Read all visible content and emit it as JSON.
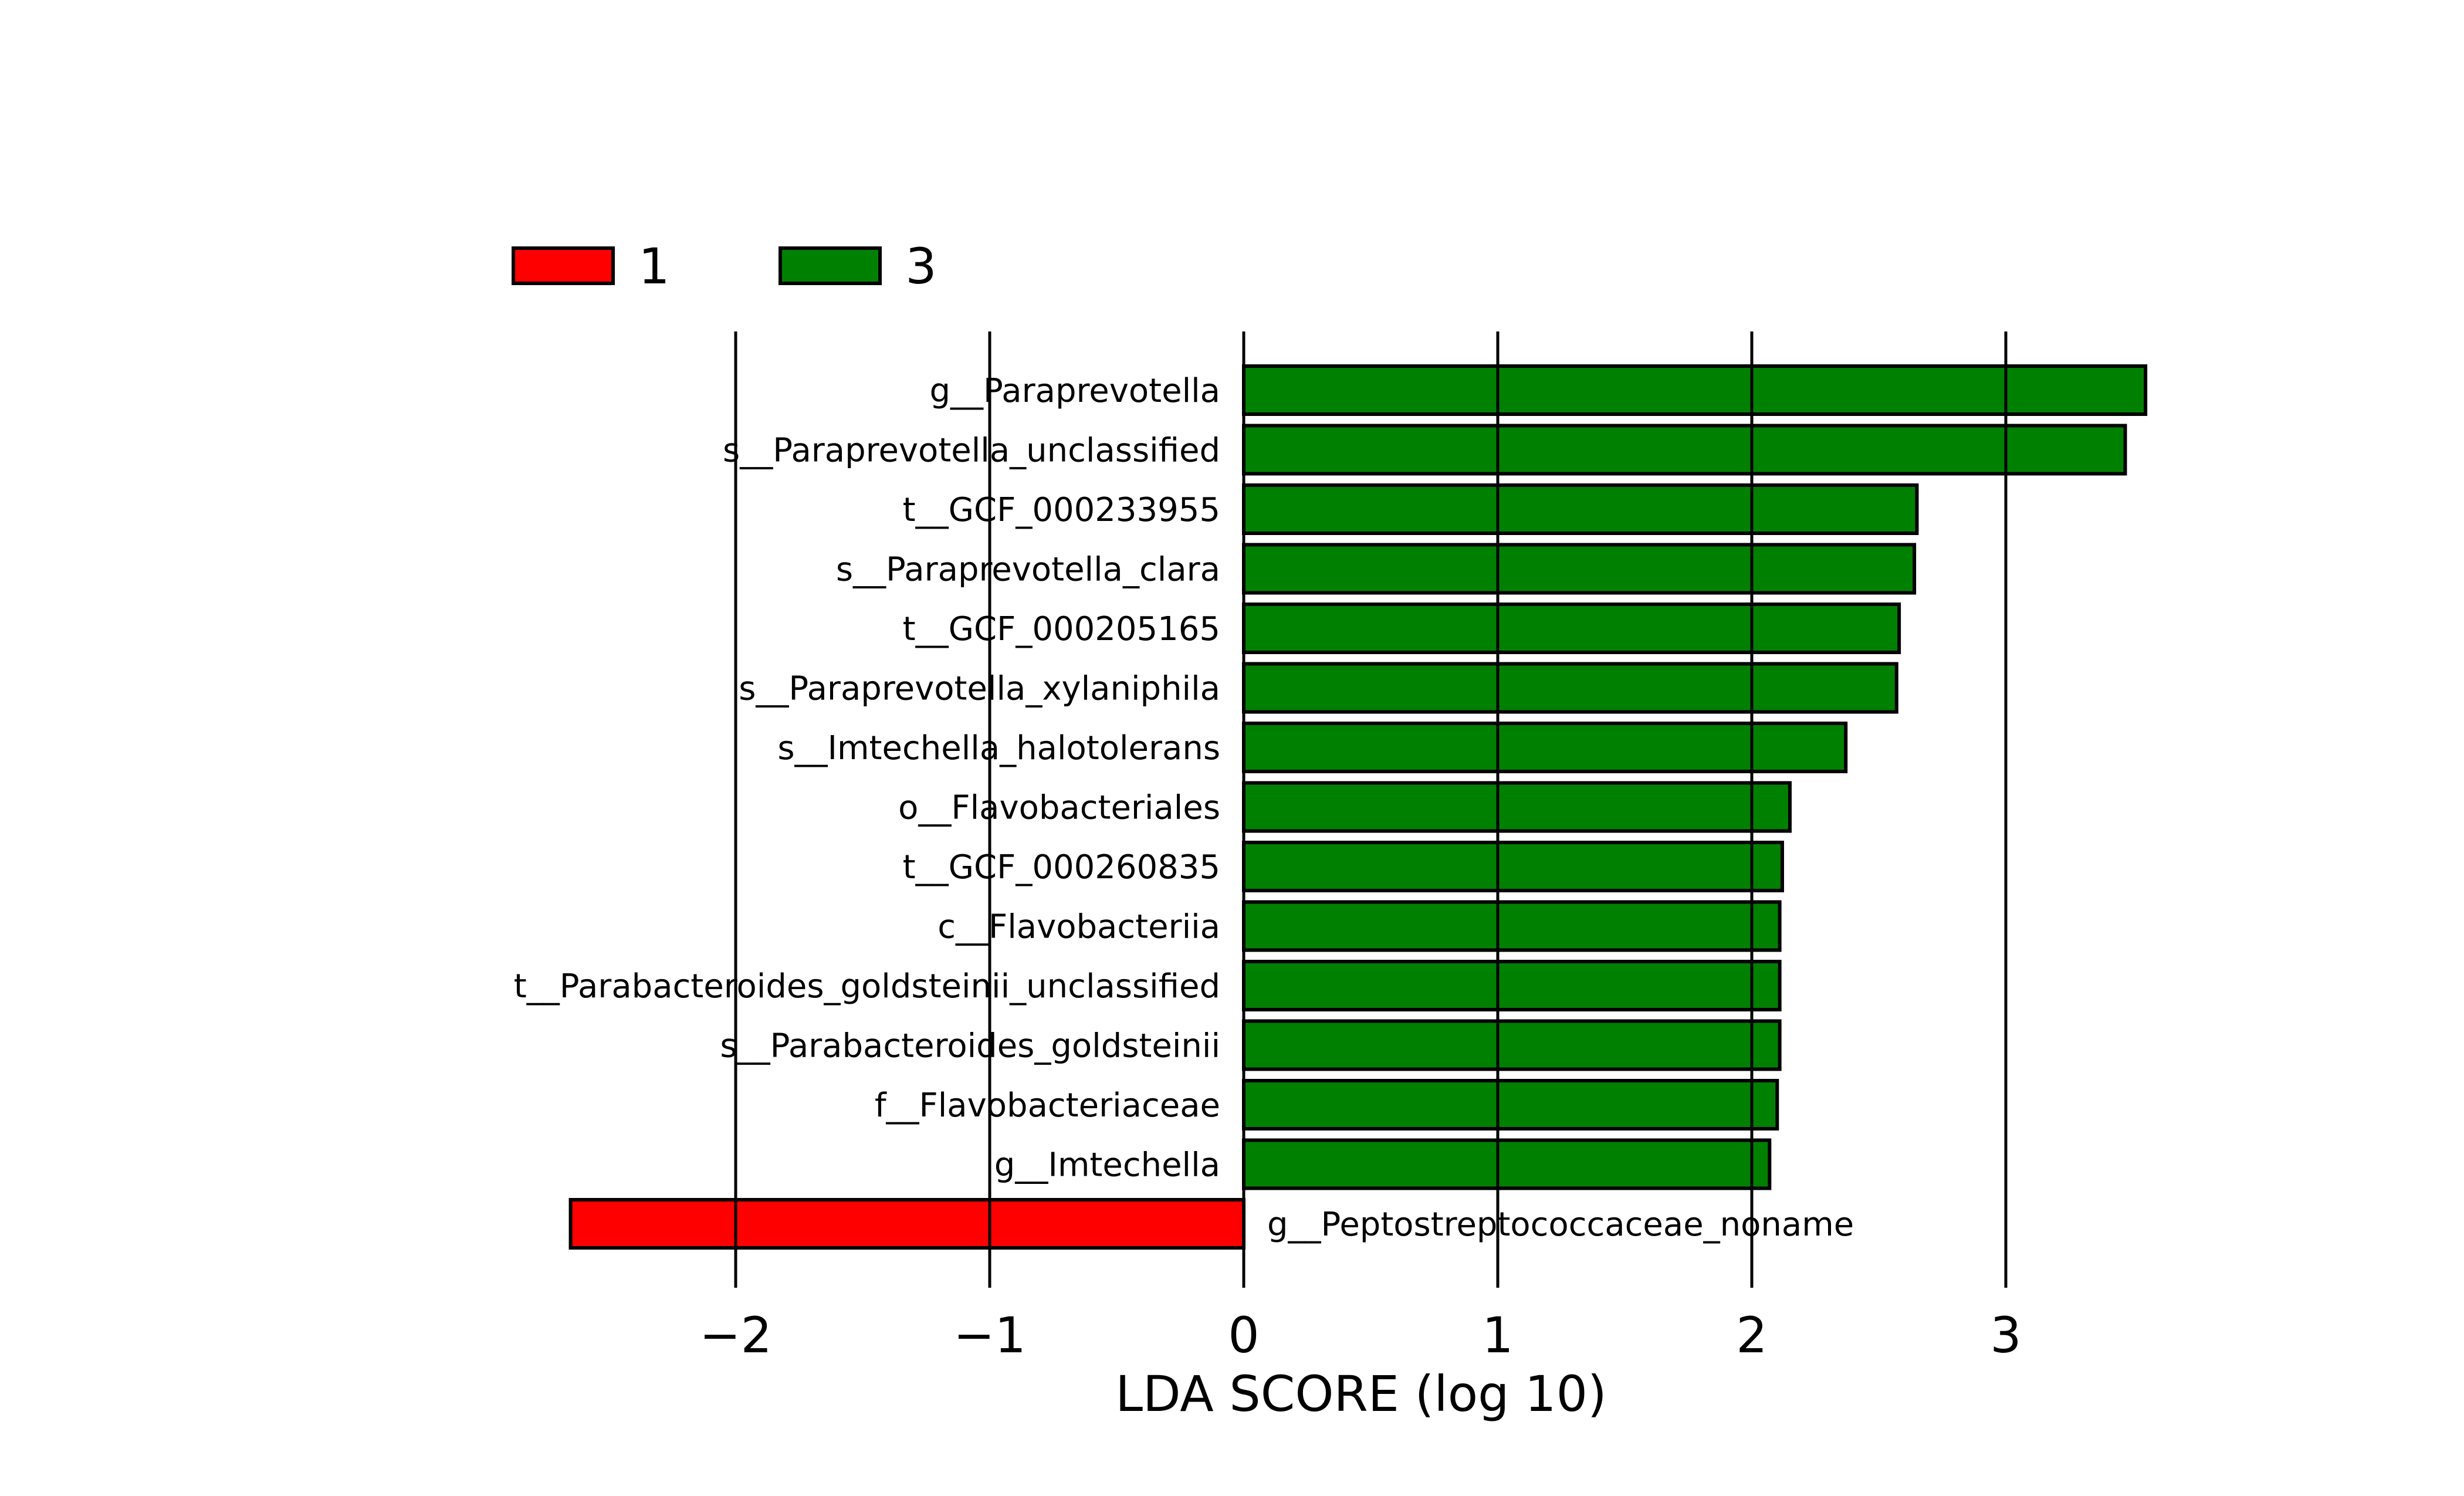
{
  "chart_data": {
    "type": "bar",
    "orientation": "horizontal",
    "xlabel": "LDA SCORE (log 10)",
    "xlim": [
      -2.9,
      3.6
    ],
    "xticks": [
      -2,
      -1,
      0,
      1,
      2,
      3
    ],
    "xtick_labels": [
      "−2",
      "−1",
      "0",
      "1",
      "2",
      "3"
    ],
    "grid": "vertical lines at ticks",
    "legend": {
      "placement": "top-left",
      "entries": [
        {
          "label": "1",
          "color": "#ff0000"
        },
        {
          "label": "3",
          "color": "#008000"
        }
      ]
    },
    "series": [
      {
        "name": "1",
        "color": "#ff0000"
      },
      {
        "name": "3",
        "color": "#008000"
      }
    ],
    "bars": [
      {
        "label": "g__Paraprevotella",
        "value": 3.55,
        "group": "3"
      },
      {
        "label": "s__Paraprevotella_unclassified",
        "value": 3.47,
        "group": "3"
      },
      {
        "label": "t__GCF_000233955",
        "value": 2.65,
        "group": "3"
      },
      {
        "label": "s__Paraprevotella_clara",
        "value": 2.64,
        "group": "3"
      },
      {
        "label": "t__GCF_000205165",
        "value": 2.58,
        "group": "3"
      },
      {
        "label": "s__Paraprevotella_xylaniphila",
        "value": 2.57,
        "group": "3"
      },
      {
        "label": "s__Imtechella_halotolerans",
        "value": 2.37,
        "group": "3"
      },
      {
        "label": "o__Flavobacteriales",
        "value": 2.15,
        "group": "3"
      },
      {
        "label": "t__GCF_000260835",
        "value": 2.12,
        "group": "3"
      },
      {
        "label": "c__Flavobacteriia",
        "value": 2.11,
        "group": "3"
      },
      {
        "label": "t__Parabacteroides_goldsteinii_unclassified",
        "value": 2.11,
        "group": "3"
      },
      {
        "label": "s__Parabacteroides_goldsteinii",
        "value": 2.11,
        "group": "3"
      },
      {
        "label": "f__Flavobacteriaceae",
        "value": 2.1,
        "group": "3"
      },
      {
        "label": "g__Imtechella",
        "value": 2.07,
        "group": "3"
      },
      {
        "label": "g__Peptostreptococcaceae_noname",
        "value": -2.65,
        "group": "1"
      }
    ]
  }
}
